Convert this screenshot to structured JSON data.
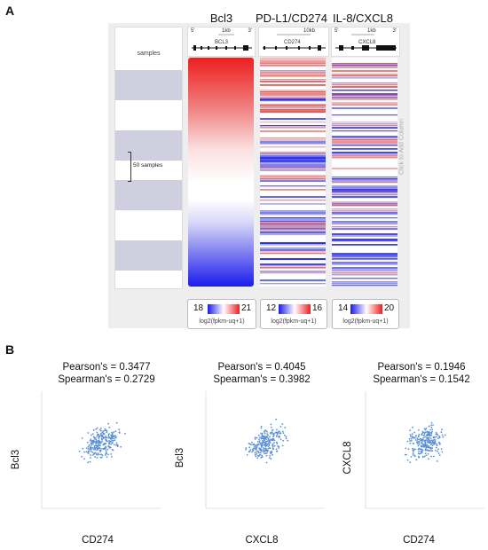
{
  "panel_a": {
    "letter": "A",
    "samples_label": "samples",
    "samples_bracket_label": "50 samples",
    "add_column_text": "Click to Add Column",
    "columns": [
      {
        "title": "Bcl3",
        "gene_label": "BCL3",
        "scale_label": "1kb",
        "strand_left": "5'",
        "strand_right": "3'",
        "legend_min": "18",
        "legend_max": "21",
        "legend_unit": "log2(fpkm-uq+1)"
      },
      {
        "title": "PD-L1/CD274",
        "gene_label": "CD274",
        "scale_label": "10kb",
        "strand_left": "",
        "strand_right": "",
        "legend_min": "12",
        "legend_max": "16",
        "legend_unit": "log2(fpkm-uq+1)"
      },
      {
        "title": "IL-8/CXCL8",
        "gene_label": "CXCL8",
        "scale_label": "1kb",
        "strand_left": "5'",
        "strand_right": "3'",
        "legend_min": "14",
        "legend_max": "20",
        "legend_unit": "log2(fpkm-uq+1)"
      }
    ],
    "colors": {
      "low": "#2222ee",
      "high": "#ee2222",
      "band": "#cfcfe0"
    }
  },
  "panel_b": {
    "letter": "B",
    "plots": [
      {
        "pearson": "Pearson's = 0.3477",
        "spearman": "Spearman's = 0.2729",
        "ylabel": "Bcl3",
        "xlabel": "CD274"
      },
      {
        "pearson": "Pearson's = 0.4045",
        "spearman": "Spearman's = 0.3982",
        "ylabel": "Bcl3",
        "xlabel": "CXCL8"
      },
      {
        "pearson": "Pearson's = 0.1946",
        "spearman": "Spearman's = 0.1542",
        "ylabel": "CXCL8",
        "xlabel": "CD274"
      }
    ],
    "point_color": "#5b8fd6"
  }
}
